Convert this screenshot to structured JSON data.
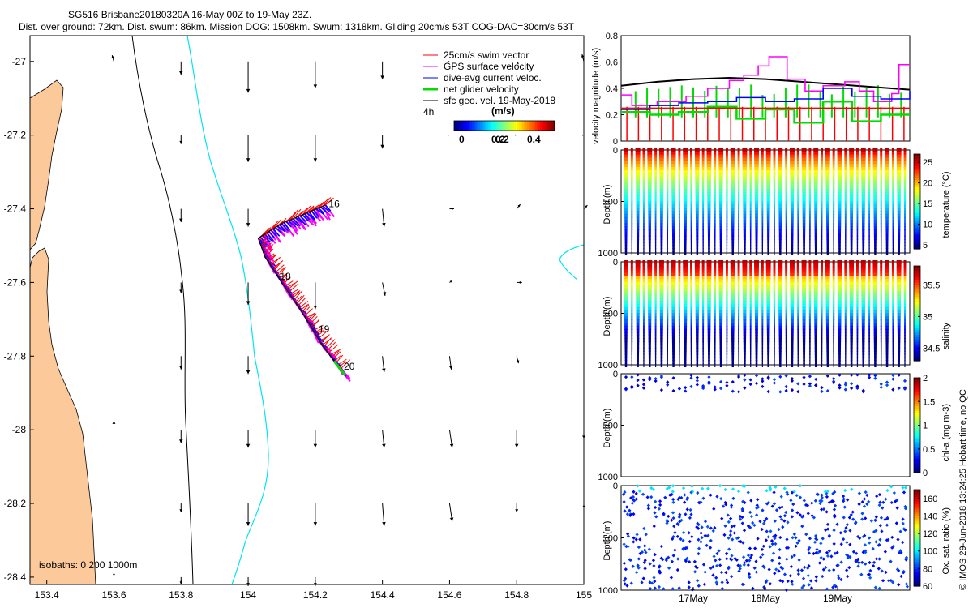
{
  "title": {
    "line1": "SG516 Brisbane20180320A 16-May 00Z to 19-May 23Z.",
    "line2": "Dist. over ground: 72km. Dist. swum: 86km. Mission DOG: 1508km. Swum: 1318km. Gliding 20cm/s 53T COG-DAC=30cm/s 53T"
  },
  "colors": {
    "land": "#fbc99a",
    "isobath200": "#000000",
    "isobath1000": "#00e5ee",
    "swim": "#ff0000",
    "gps": "#ff00ff",
    "dac": "#0000ff",
    "net": "#00dd00",
    "geo": "#000000"
  },
  "chart_data": [
    {
      "type": "scatter",
      "name": "map",
      "xlabel": "",
      "ylabel": "",
      "xlim": [
        153.35,
        155.0
      ],
      "ylim": [
        -28.42,
        -26.93
      ],
      "xticks": [
        153.4,
        153.6,
        153.8,
        154,
        154.2,
        154.4,
        154.6,
        154.8,
        155
      ],
      "xtick_labels": [
        "153.4",
        "153.6",
        "153.8",
        "154",
        "154.2",
        "154.4",
        "154.6",
        "154.8",
        "155"
      ],
      "yticks": [
        -27,
        -27.2,
        -27.4,
        -27.6,
        -27.8,
        -28,
        -28.2,
        -28.4
      ],
      "ytick_labels": [
        "-27",
        "-27.2",
        "-27.4",
        "-27.6",
        "-27.8",
        "-28",
        "-28.2",
        "-28.4"
      ],
      "legend": [
        {
          "label": "25cm/s swim vector",
          "color": "#ff0000"
        },
        {
          "label": "GPS surface velocity",
          "color": "#ff00ff"
        },
        {
          "label": "dive-avg current veloc.",
          "color": "#0000ff"
        },
        {
          "label": "net glider velocity",
          "color": "#00dd00"
        },
        {
          "label": "sfc geo. vel. 19-May-2018",
          "color": "#000000"
        }
      ],
      "legend_position": "top-right",
      "scale_label": "4h",
      "colorbar": {
        "title": "(m/s)",
        "range": [
          0,
          0.5
        ],
        "ticks": [
          "0",
          "0.2",
          "0.4"
        ],
        "extra_tick": "0.2"
      },
      "isobaths_label": "isobaths: 0   200  1000m",
      "track": [
        [
          154.23,
          -27.39
        ],
        [
          154.1,
          -27.44
        ],
        [
          154.03,
          -27.48
        ],
        [
          154.05,
          -27.53
        ],
        [
          154.1,
          -27.6
        ],
        [
          154.16,
          -27.68
        ],
        [
          154.22,
          -27.77
        ],
        [
          154.28,
          -27.84
        ]
      ],
      "day_labels": [
        {
          "text": "16",
          "lon": 154.24,
          "lat": -27.395
        },
        {
          "text": "18",
          "lon": 154.095,
          "lat": -27.593
        },
        {
          "text": "19",
          "lon": 154.21,
          "lat": -27.735
        },
        {
          "text": "20",
          "lon": 154.285,
          "lat": -27.837
        }
      ],
      "geo_vectors": [
        {
          "lon": 153.6,
          "lat": -27.0,
          "u": -0.02,
          "v": 0.07
        },
        {
          "lon": 153.8,
          "lat": -27.0,
          "u": 0.0,
          "v": -0.15
        },
        {
          "lon": 154.0,
          "lat": -27.0,
          "u": 0.0,
          "v": -0.35
        },
        {
          "lon": 154.2,
          "lat": -27.0,
          "u": 0.0,
          "v": -0.3
        },
        {
          "lon": 154.4,
          "lat": -27.0,
          "u": 0.0,
          "v": -0.2
        },
        {
          "lon": 154.6,
          "lat": -27.0,
          "u": 0.0,
          "v": 0.0
        },
        {
          "lon": 154.8,
          "lat": -27.0,
          "u": 0.02,
          "v": -0.03
        },
        {
          "lon": 155.0,
          "lat": -27.0,
          "u": -0.02,
          "v": 0.08
        },
        {
          "lon": 153.8,
          "lat": -27.2,
          "u": 0.0,
          "v": -0.1
        },
        {
          "lon": 154.0,
          "lat": -27.2,
          "u": 0.0,
          "v": -0.3
        },
        {
          "lon": 154.2,
          "lat": -27.2,
          "u": 0.0,
          "v": -0.3
        },
        {
          "lon": 154.4,
          "lat": -27.2,
          "u": 0.0,
          "v": -0.15
        },
        {
          "lon": 154.6,
          "lat": -27.2,
          "u": 0.0,
          "v": 0.0
        },
        {
          "lon": 154.8,
          "lat": -27.2,
          "u": 0.0,
          "v": 0.0
        },
        {
          "lon": 155.0,
          "lat": -27.2,
          "u": 0.0,
          "v": 0.0
        },
        {
          "lon": 153.8,
          "lat": -27.4,
          "u": 0.0,
          "v": -0.15
        },
        {
          "lon": 154.0,
          "lat": -27.4,
          "u": 0.0,
          "v": -0.2
        },
        {
          "lon": 154.4,
          "lat": -27.4,
          "u": 0.02,
          "v": -0.2
        },
        {
          "lon": 154.6,
          "lat": -27.4,
          "u": 0.05,
          "v": 0.0
        },
        {
          "lon": 154.8,
          "lat": -27.4,
          "u": 0.04,
          "v": 0.05
        },
        {
          "lon": 155.0,
          "lat": -27.4,
          "u": 0.04,
          "v": 0.04
        },
        {
          "lon": 153.8,
          "lat": -27.6,
          "u": 0.0,
          "v": -0.12
        },
        {
          "lon": 154.0,
          "lat": -27.6,
          "u": 0.0,
          "v": -0.25
        },
        {
          "lon": 154.2,
          "lat": -27.6,
          "u": 0.0,
          "v": -0.3
        },
        {
          "lon": 154.4,
          "lat": -27.6,
          "u": 0.03,
          "v": -0.15
        },
        {
          "lon": 154.6,
          "lat": -27.6,
          "u": 0.03,
          "v": 0.02
        },
        {
          "lon": 154.8,
          "lat": -27.6,
          "u": 0.06,
          "v": 0.0
        },
        {
          "lon": 153.8,
          "lat": -27.8,
          "u": 0.0,
          "v": -0.15
        },
        {
          "lon": 154.0,
          "lat": -27.8,
          "u": 0.0,
          "v": -0.2
        },
        {
          "lon": 154.4,
          "lat": -27.8,
          "u": 0.02,
          "v": -0.18
        },
        {
          "lon": 154.6,
          "lat": -27.8,
          "u": 0.02,
          "v": -0.15
        },
        {
          "lon": 154.8,
          "lat": -27.8,
          "u": 0.02,
          "v": -0.08
        },
        {
          "lon": 153.6,
          "lat": -28.0,
          "u": 0.0,
          "v": 0.1
        },
        {
          "lon": 153.8,
          "lat": -28.0,
          "u": 0.0,
          "v": -0.15
        },
        {
          "lon": 154.0,
          "lat": -28.0,
          "u": 0.0,
          "v": -0.2
        },
        {
          "lon": 154.2,
          "lat": -28.0,
          "u": 0.0,
          "v": -0.2
        },
        {
          "lon": 154.4,
          "lat": -28.0,
          "u": 0.02,
          "v": -0.2
        },
        {
          "lon": 154.6,
          "lat": -28.0,
          "u": 0.03,
          "v": -0.2
        },
        {
          "lon": 154.8,
          "lat": -28.0,
          "u": 0.0,
          "v": -0.2
        },
        {
          "lon": 155.0,
          "lat": -28.0,
          "u": 0.0,
          "v": -0.1
        },
        {
          "lon": 153.8,
          "lat": -28.2,
          "u": 0.0,
          "v": -0.1
        },
        {
          "lon": 154.0,
          "lat": -28.2,
          "u": 0.0,
          "v": -0.25
        },
        {
          "lon": 154.2,
          "lat": -28.2,
          "u": 0.0,
          "v": -0.25
        },
        {
          "lon": 154.4,
          "lat": -28.2,
          "u": 0.02,
          "v": -0.25
        },
        {
          "lon": 154.6,
          "lat": -28.2,
          "u": 0.03,
          "v": -0.2
        },
        {
          "lon": 154.8,
          "lat": -28.2,
          "u": 0.0,
          "v": -0.1
        },
        {
          "lon": 155.0,
          "lat": -28.2,
          "u": 0.0,
          "v": -0.05
        },
        {
          "lon": 153.6,
          "lat": -28.4,
          "u": 0.0,
          "v": 0.05
        },
        {
          "lon": 153.8,
          "lat": -28.4,
          "u": 0.0,
          "v": -0.08
        },
        {
          "lon": 154.0,
          "lat": -28.4,
          "u": 0.0,
          "v": -0.1
        },
        {
          "lon": 154.2,
          "lat": -28.4,
          "u": 0.0,
          "v": -0.1
        }
      ]
    },
    {
      "type": "line",
      "name": "velocity",
      "ylabel": "velocity magnitude (m/s)",
      "ylim": [
        0,
        0.8
      ],
      "yticks": [
        "0",
        "0.2",
        "0.4",
        "0.6",
        "0.8"
      ],
      "series": [
        {
          "name": "sfc geo. vel.",
          "color": "#000000",
          "x": [
            16.0,
            16.5,
            17.0,
            17.5,
            18.0,
            18.5,
            19.0,
            19.5,
            20.0
          ],
          "values": [
            0.42,
            0.45,
            0.47,
            0.48,
            0.47,
            0.45,
            0.43,
            0.41,
            0.39
          ]
        },
        {
          "name": "GPS surface velocity",
          "color": "#ff00ff",
          "x": [
            16.0,
            16.15,
            16.5,
            16.9,
            17.2,
            17.5,
            17.7,
            17.9,
            18.05,
            18.3,
            18.55,
            18.8,
            19.1,
            19.3,
            19.5,
            19.75,
            19.85
          ],
          "values": [
            0.35,
            0.27,
            0.3,
            0.34,
            0.4,
            0.46,
            0.5,
            0.57,
            0.64,
            0.47,
            0.38,
            0.42,
            0.45,
            0.38,
            0.3,
            0.36,
            0.58
          ]
        },
        {
          "name": "dive-avg current veloc.",
          "color": "#0000ff",
          "x": [
            16.0,
            16.4,
            16.8,
            17.2,
            17.6,
            18.0,
            18.4,
            18.8,
            19.2,
            19.6,
            20.0
          ],
          "values": [
            0.24,
            0.27,
            0.29,
            0.3,
            0.33,
            0.3,
            0.32,
            0.4,
            0.34,
            0.32,
            0.38
          ]
        },
        {
          "name": "net glider velocity",
          "color": "#00dd00",
          "x": [
            16.0,
            16.4,
            16.8,
            17.2,
            17.6,
            18.0,
            18.4,
            18.8,
            19.2,
            19.6,
            20.0
          ],
          "values": [
            0.22,
            0.2,
            0.22,
            0.26,
            0.17,
            0.24,
            0.14,
            0.3,
            0.15,
            0.2,
            0.2
          ]
        },
        {
          "name": "swim vector",
          "color": "#ff0000",
          "x": [
            16.0,
            20.0
          ],
          "values": [
            0.25,
            0.25
          ]
        }
      ]
    },
    {
      "type": "heatmap",
      "name": "temperature",
      "ylabel": "Depth (m)",
      "cbar_label": "temperature (°C)",
      "cbar_ticks": [
        "5",
        "10",
        "15",
        "20",
        "25"
      ],
      "value_range": [
        4,
        27
      ],
      "depth_ticks": [
        "0",
        "500",
        "1000"
      ]
    },
    {
      "type": "heatmap",
      "name": "salinity",
      "ylabel": "Depth (m)",
      "cbar_label": "salinity",
      "cbar_ticks": [
        "34.5",
        "35",
        "35.5"
      ],
      "value_range": [
        34.3,
        35.8
      ],
      "depth_ticks": [
        "0",
        "500",
        "1000"
      ]
    },
    {
      "type": "heatmap",
      "name": "chl-a",
      "ylabel": "Depth (m)",
      "cbar_label": "chl-a (mg m-3)",
      "cbar_ticks": [
        "0",
        "0.5",
        "1",
        "1.5",
        "2"
      ],
      "value_range": [
        0,
        2
      ],
      "depth_ticks": [
        "0",
        "500",
        "1000"
      ]
    },
    {
      "type": "heatmap",
      "name": "oxygen",
      "ylabel": "Depth (m)",
      "cbar_label": "Ox. sat. ratio (%)",
      "cbar_ticks": [
        "60",
        "80",
        "100",
        "120",
        "140",
        "160"
      ],
      "value_range": [
        60,
        170
      ],
      "depth_ticks": [
        "0",
        "500",
        "1000"
      ],
      "xtick_labels": [
        "17May",
        "18May",
        "19May"
      ]
    }
  ],
  "side_label": "© IMOS 29-Jun-2018 13:24:25 Hobart time, no QC"
}
